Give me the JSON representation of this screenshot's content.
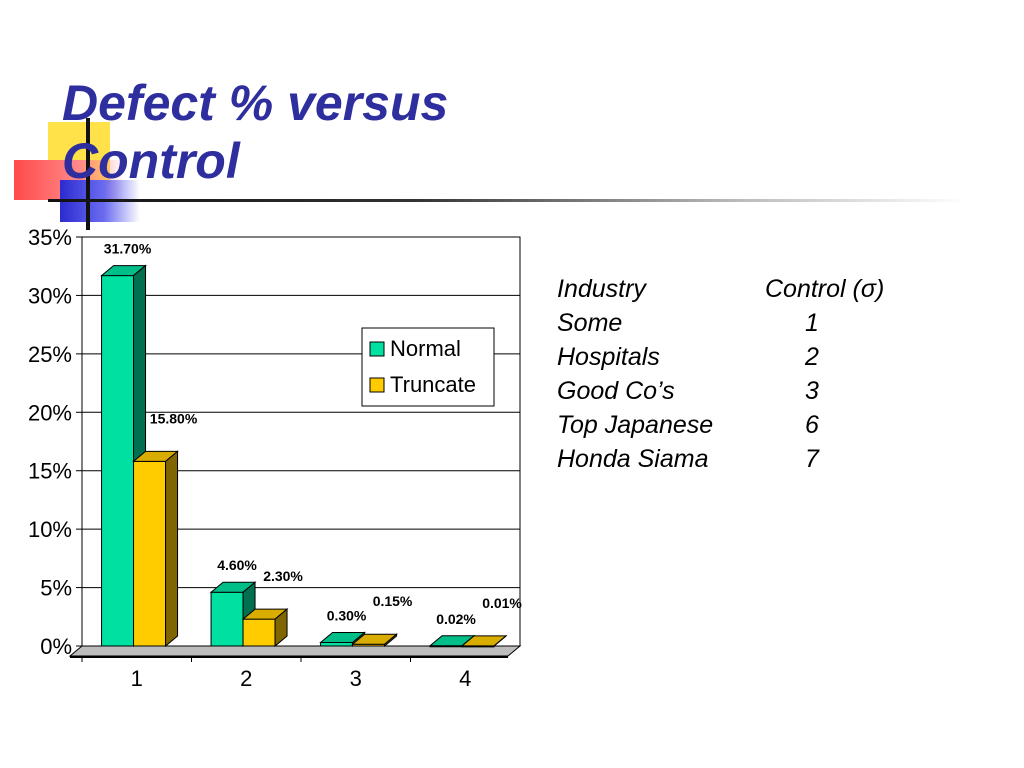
{
  "slide": {
    "title_line1": "Defect % versus",
    "title_line2": "Control"
  },
  "colors": {
    "title": "#2e2e9e",
    "normal": "#00e0a0",
    "truncate": "#ffcc00"
  },
  "chart_data": {
    "type": "bar",
    "categories": [
      "1",
      "2",
      "3",
      "4"
    ],
    "series": [
      {
        "name": "Normal",
        "values": [
          31.7,
          4.6,
          0.3,
          0.02
        ],
        "labels": [
          "31.70%",
          "4.60%",
          "0.30%",
          "0.02%"
        ]
      },
      {
        "name": "Truncate",
        "values": [
          15.8,
          2.3,
          0.15,
          0.01
        ],
        "labels": [
          "15.80%",
          "2.30%",
          "0.15%",
          "0.01%"
        ]
      }
    ],
    "yticks": [
      "0%",
      "5%",
      "10%",
      "15%",
      "20%",
      "25%",
      "30%",
      "35%"
    ],
    "ylim": [
      0,
      35
    ],
    "grid": true,
    "legend_position": "right",
    "style": "3d"
  },
  "table": {
    "headers": [
      "Industry",
      "Control (σ)"
    ],
    "rows": [
      [
        "Some",
        "1"
      ],
      [
        "Hospitals",
        "2"
      ],
      [
        "Good Co’s",
        "3"
      ],
      [
        "Top Japanese",
        "6"
      ],
      [
        "Honda Siama",
        "7"
      ]
    ]
  }
}
